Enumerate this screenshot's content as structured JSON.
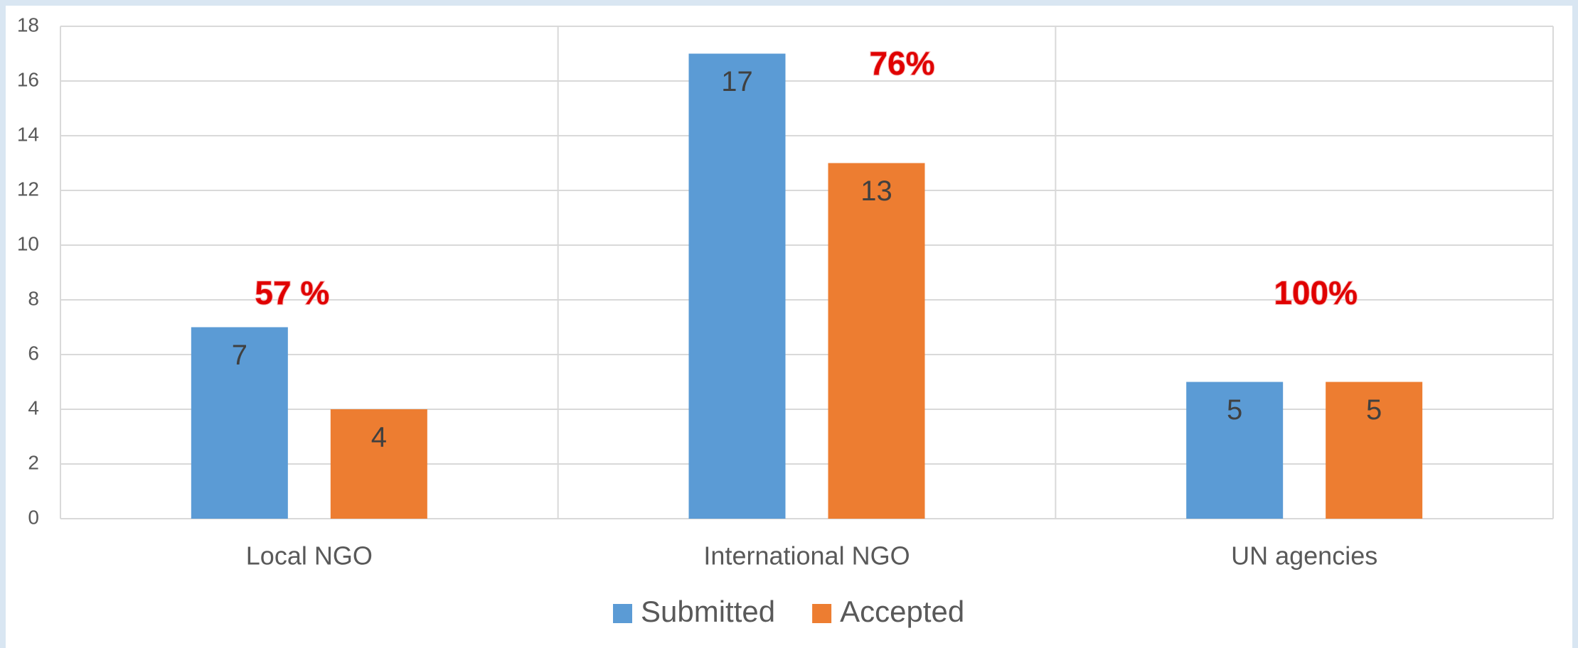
{
  "chart_data": {
    "type": "bar",
    "categories": [
      "Local NGO",
      "International NGO",
      "UN agencies"
    ],
    "series": [
      {
        "name": "Submitted",
        "color": "#5b9bd5",
        "values": [
          7,
          17,
          5
        ]
      },
      {
        "name": "Accepted",
        "color": "#ed7d31",
        "values": [
          4,
          13,
          5
        ]
      }
    ],
    "annotations": [
      "57 %",
      "76%",
      "100%"
    ],
    "ylim": [
      0,
      18
    ],
    "yticks": [
      0,
      2,
      4,
      6,
      8,
      10,
      12,
      14,
      16,
      18
    ],
    "grid": true,
    "legend": "bottom"
  }
}
